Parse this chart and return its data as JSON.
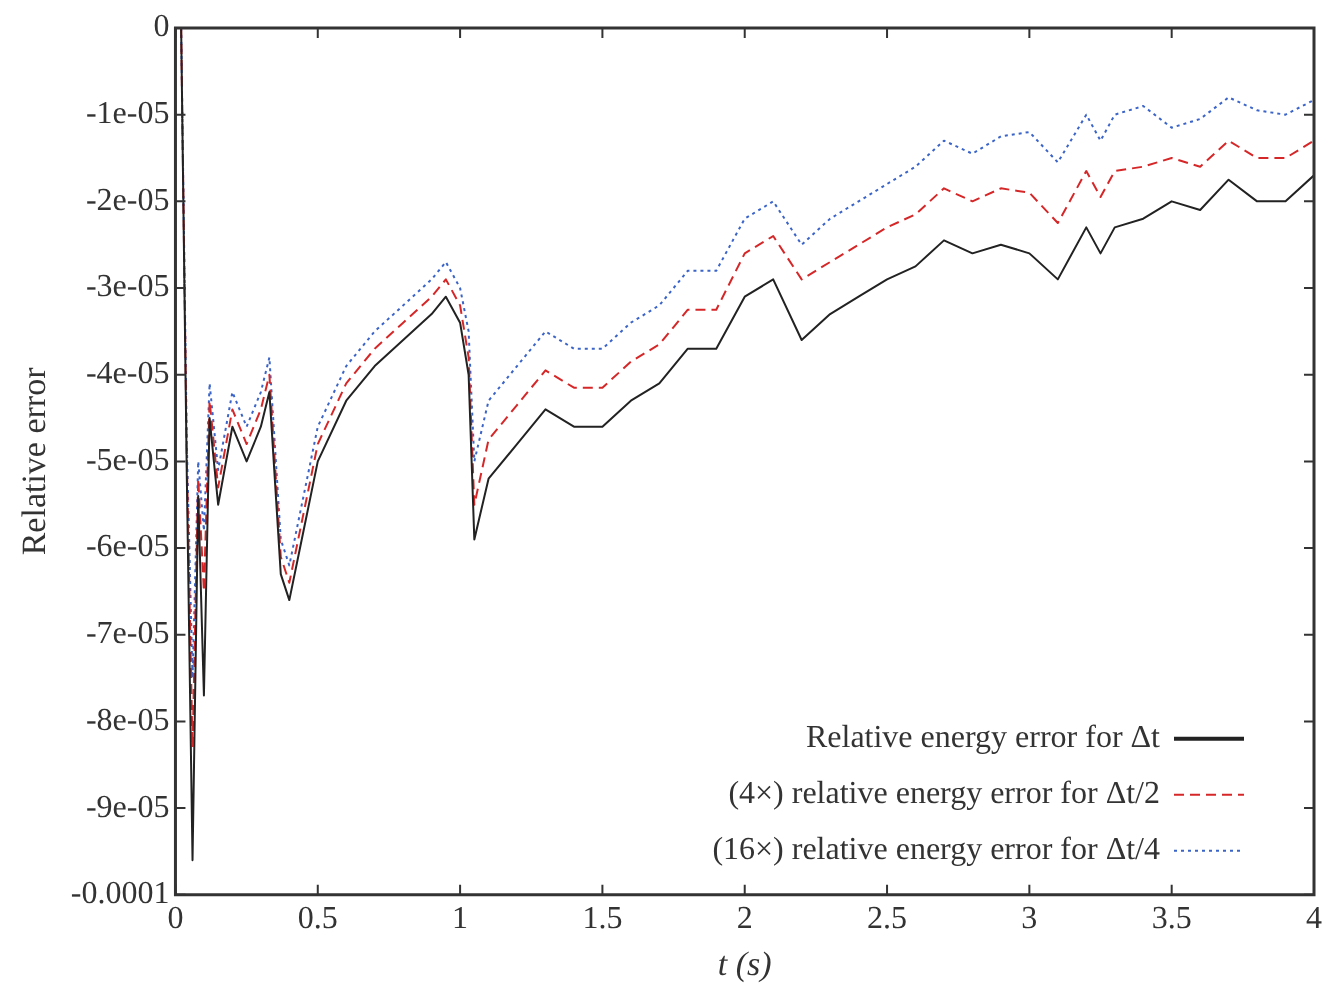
{
  "chart_data": {
    "type": "line",
    "xlabel": "t (s)",
    "ylabel": "Relative error",
    "x": [
      0.02,
      0.04,
      0.06,
      0.08,
      0.1,
      0.12,
      0.15,
      0.2,
      0.25,
      0.3,
      0.33,
      0.37,
      0.4,
      0.45,
      0.5,
      0.6,
      0.7,
      0.8,
      0.9,
      0.95,
      1.0,
      1.03,
      1.05,
      1.1,
      1.2,
      1.3,
      1.4,
      1.5,
      1.6,
      1.7,
      1.8,
      1.9,
      2.0,
      2.1,
      2.2,
      2.3,
      2.4,
      2.5,
      2.6,
      2.7,
      2.8,
      2.9,
      3.0,
      3.1,
      3.2,
      3.25,
      3.3,
      3.4,
      3.5,
      3.6,
      3.7,
      3.8,
      3.9,
      4.0
    ],
    "series": [
      {
        "name": "Relative energy error for Δt",
        "color": "#222222",
        "line_style": "solid",
        "values": [
          0,
          -5.2e-05,
          -9.6e-05,
          -5.4e-05,
          -7.7e-05,
          -4.5e-05,
          -5.5e-05,
          -4.6e-05,
          -5e-05,
          -4.6e-05,
          -4.2e-05,
          -6.3e-05,
          -6.6e-05,
          -5.8e-05,
          -5e-05,
          -4.3e-05,
          -3.9e-05,
          -3.6e-05,
          -3.3e-05,
          -3.1e-05,
          -3.4e-05,
          -4e-05,
          -5.9e-05,
          -5.2e-05,
          -4.8e-05,
          -4.4e-05,
          -4.6e-05,
          -4.6e-05,
          -4.3e-05,
          -4.1e-05,
          -3.7e-05,
          -3.7e-05,
          -3.1e-05,
          -2.9e-05,
          -3.6e-05,
          -3.3e-05,
          -3.1e-05,
          -2.9e-05,
          -2.75e-05,
          -2.45e-05,
          -2.6e-05,
          -2.5e-05,
          -2.6e-05,
          -2.9e-05,
          -2.3e-05,
          -2.6e-05,
          -2.3e-05,
          -2.2e-05,
          -2e-05,
          -2.1e-05,
          -1.75e-05,
          -2e-05,
          -2e-05,
          -1.7e-05
        ]
      },
      {
        "name": "(4×) relative energy error for Δt/2",
        "color": "#d62728",
        "line_style": "dashed",
        "values": [
          0,
          -5e-05,
          -8.3e-05,
          -5.2e-05,
          -6.5e-05,
          -4.3e-05,
          -5.3e-05,
          -4.4e-05,
          -4.8e-05,
          -4.4e-05,
          -4e-05,
          -6.1e-05,
          -6.4e-05,
          -5.6e-05,
          -4.8e-05,
          -4.1e-05,
          -3.7e-05,
          -3.4e-05,
          -3.1e-05,
          -2.9e-05,
          -3.2e-05,
          -3.8e-05,
          -5.5e-05,
          -4.75e-05,
          -4.35e-05,
          -3.95e-05,
          -4.15e-05,
          -4.15e-05,
          -3.85e-05,
          -3.65e-05,
          -3.25e-05,
          -3.25e-05,
          -2.6e-05,
          -2.4e-05,
          -2.9e-05,
          -2.7e-05,
          -2.5e-05,
          -2.3e-05,
          -2.15e-05,
          -1.85e-05,
          -2e-05,
          -1.85e-05,
          -1.9e-05,
          -2.25e-05,
          -1.65e-05,
          -1.95e-05,
          -1.65e-05,
          -1.6e-05,
          -1.5e-05,
          -1.6e-05,
          -1.3e-05,
          -1.5e-05,
          -1.5e-05,
          -1.3e-05
        ]
      },
      {
        "name": "(16×) relative energy error for Δt/4",
        "color": "#3b64c8",
        "line_style": "dotted",
        "values": [
          0,
          -4.8e-05,
          -7.5e-05,
          -5e-05,
          -5.8e-05,
          -4.1e-05,
          -5.1e-05,
          -4.2e-05,
          -4.6e-05,
          -4.2e-05,
          -3.8e-05,
          -5.9e-05,
          -6.2e-05,
          -5.4e-05,
          -4.6e-05,
          -3.9e-05,
          -3.5e-05,
          -3.2e-05,
          -2.9e-05,
          -2.7e-05,
          -3e-05,
          -3.5e-05,
          -5e-05,
          -4.3e-05,
          -3.9e-05,
          -3.5e-05,
          -3.7e-05,
          -3.7e-05,
          -3.4e-05,
          -3.2e-05,
          -2.8e-05,
          -2.8e-05,
          -2.2e-05,
          -2e-05,
          -2.5e-05,
          -2.2e-05,
          -2e-05,
          -1.8e-05,
          -1.6e-05,
          -1.3e-05,
          -1.45e-05,
          -1.25e-05,
          -1.2e-05,
          -1.55e-05,
          -1e-05,
          -1.3e-05,
          -1e-05,
          -9e-06,
          -1.15e-05,
          -1.05e-05,
          -8e-06,
          -9.5e-06,
          -1e-05,
          -8.3e-06
        ]
      }
    ],
    "xlim": [
      0,
      4
    ],
    "xticks": [
      0,
      0.5,
      1,
      1.5,
      2,
      2.5,
      3,
      3.5,
      4
    ],
    "ylim": [
      -0.0001,
      0
    ],
    "yticks": [
      {
        "value": -0.0001,
        "label": "-0.0001"
      },
      {
        "value": -9e-05,
        "label": "-9e-05"
      },
      {
        "value": -8e-05,
        "label": "-8e-05"
      },
      {
        "value": -7e-05,
        "label": "-7e-05"
      },
      {
        "value": -6e-05,
        "label": "-6e-05"
      },
      {
        "value": -5e-05,
        "label": "-5e-05"
      },
      {
        "value": -4e-05,
        "label": "-4e-05"
      },
      {
        "value": -3e-05,
        "label": "-3e-05"
      },
      {
        "value": -2e-05,
        "label": "-2e-05"
      },
      {
        "value": -1e-05,
        "label": "-1e-05"
      },
      {
        "value": 0,
        "label": "0"
      }
    ],
    "grid": false,
    "legend": "bottom right",
    "marker": "none"
  }
}
